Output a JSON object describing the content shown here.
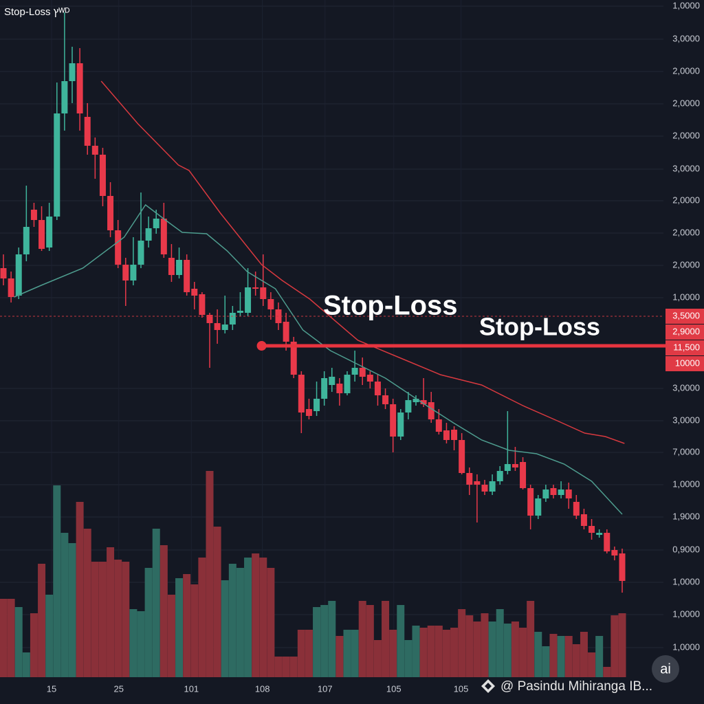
{
  "chart_data": {
    "type": "candlestick",
    "title": "Stop-Loss ץᵂᴰ",
    "up_color": "#3fb59c",
    "down_color": "#e8394a",
    "volume_up_color": "#2e6b62",
    "volume_down_color": "#8a3039",
    "grid": true,
    "xlim": [
      -0.45,
      86.4
    ],
    "ylim": [
      0,
      100
    ],
    "y2lim": [
      0,
      100
    ],
    "xticks": [
      {
        "value": 6.3,
        "label": "15"
      },
      {
        "value": 15.1,
        "label": "25"
      },
      {
        "value": 24.6,
        "label": "101"
      },
      {
        "value": 33.9,
        "label": "108"
      },
      {
        "value": 42.1,
        "label": "107"
      },
      {
        "value": 51.1,
        "label": "105"
      },
      {
        "value": 59.9,
        "label": "105"
      }
    ],
    "yticks": [
      {
        "value": 99.1,
        "label": "1,0000"
      },
      {
        "value": 94.3,
        "label": "3,0000"
      },
      {
        "value": 89.6,
        "label": "2,0000"
      },
      {
        "value": 84.9,
        "label": "2,0000"
      },
      {
        "value": 80.2,
        "label": "2,0000"
      },
      {
        "value": 75.4,
        "label": "3,0000"
      },
      {
        "value": 70.8,
        "label": "2,0000"
      },
      {
        "value": 66.1,
        "label": "2,0000"
      },
      {
        "value": 61.4,
        "label": "2,0000"
      },
      {
        "value": 56.7,
        "label": "1,0000"
      },
      {
        "value": 43.5,
        "label": "3,0000"
      },
      {
        "value": 38.8,
        "label": "3,0000"
      },
      {
        "value": 34.2,
        "label": "7,0000"
      },
      {
        "value": 29.5,
        "label": "1,0000"
      },
      {
        "value": 24.8,
        "label": "1,9000"
      },
      {
        "value": 20,
        "label": "0,9000"
      },
      {
        "value": 15.3,
        "label": "1,0000"
      },
      {
        "value": 10.6,
        "label": "1,0000"
      },
      {
        "value": 5.8,
        "label": "1,0000"
      }
    ],
    "price_markers": [
      {
        "value": 54,
        "label": "3,5000"
      },
      {
        "value": 51.7,
        "label": "2,9000"
      },
      {
        "value": 49.4,
        "label": "11,500"
      },
      {
        "value": 47.1,
        "label": "10000"
      }
    ],
    "dashed_level": 54,
    "stop_loss": {
      "value": 49.7,
      "start_x": 33.8
    },
    "annotations": [
      "Stop-Loss",
      "Stop-Loss"
    ],
    "open": [
      61,
      59.5,
      57,
      63,
      69.5,
      68,
      64,
      68.5,
      83.5,
      88.2,
      90.8,
      83,
      78.8,
      77.5,
      71.5,
      66.5,
      61.5,
      59.2,
      61.5,
      65,
      66.8,
      68.2,
      62.5,
      60,
      62.2,
      58,
      57.2,
      54.2,
      53,
      52,
      52.8,
      54.5,
      54.5,
      58.2,
      58.2,
      56.5,
      55,
      53.2,
      50.3,
      45.5,
      40.5,
      40.2,
      42,
      44,
      44.2,
      42.8,
      45.5,
      46.5,
      45.5,
      44.5,
      42.5,
      41.2,
      36.5,
      40,
      41.5,
      41.8,
      41.5,
      39,
      37.4,
      37.5,
      36,
      31.2,
      30,
      29.5,
      28.5,
      30,
      31.5,
      32.5,
      32.8,
      29,
      25,
      27.5,
      29,
      28,
      28.8,
      27,
      25.2,
      23.5,
      22.2,
      22.5,
      20,
      19.5
    ],
    "high": [
      63,
      60.5,
      64,
      73,
      70.5,
      70,
      70.5,
      88,
      98.2,
      93.2,
      93,
      85,
      80,
      78.5,
      73.5,
      68,
      62.5,
      65.5,
      72,
      68.5,
      69.5,
      70.5,
      64.5,
      64,
      63,
      59,
      57.5,
      54.5,
      55,
      57,
      55.5,
      57.5,
      61,
      60.5,
      63,
      57.5,
      56,
      54.5,
      51,
      46,
      42,
      44.5,
      46,
      46.5,
      45,
      46,
      49,
      48,
      46,
      45.5,
      43.5,
      42,
      40.5,
      43,
      42.5,
      45,
      43,
      40.5,
      38.5,
      38,
      37,
      32,
      31,
      30.2,
      31,
      32.2,
      40.2,
      35,
      33.5,
      29.5,
      28,
      29.5,
      29.5,
      30,
      29.8,
      28,
      26,
      24.5,
      23,
      23,
      20.5,
      20.2
    ],
    "low": [
      58.5,
      56,
      56.5,
      62,
      67,
      63.5,
      63.5,
      68,
      81,
      85,
      81,
      77.5,
      74,
      70,
      65.5,
      61,
      55.5,
      58.5,
      61,
      64,
      66,
      62.5,
      59,
      59.5,
      57,
      55,
      53.8,
      46.5,
      50,
      51.5,
      52,
      54,
      54,
      57,
      55.5,
      53.5,
      52,
      49,
      45,
      37,
      39,
      39.5,
      41,
      43,
      41,
      42.5,
      44.5,
      44,
      43.5,
      41,
      40.5,
      34.2,
      36,
      39,
      41,
      40.8,
      38.5,
      36.8,
      35.5,
      34.5,
      31,
      28,
      24,
      28,
      28,
      29.5,
      31,
      31.5,
      28.8,
      23,
      24.5,
      27,
      27.5,
      27.5,
      26,
      24.5,
      23,
      21.5,
      21.8,
      19.5,
      18.5,
      13.8
    ],
    "close": [
      59.5,
      56.8,
      63,
      67,
      68,
      63.8,
      68.5,
      83.5,
      88.2,
      90.8,
      83.5,
      78.8,
      77.5,
      71.5,
      66.5,
      61.5,
      59.2,
      61.5,
      65,
      66.8,
      68.2,
      63,
      60,
      62.2,
      57.5,
      57,
      54.2,
      53,
      52,
      52.8,
      54.5,
      54.8,
      58.2,
      58,
      56.5,
      55,
      53,
      50.3,
      45.5,
      40,
      39.5,
      42,
      45,
      45.2,
      42.8,
      45.5,
      46.5,
      45.2,
      44.5,
      42.5,
      41.2,
      36.5,
      40,
      41.8,
      42,
      41.2,
      39,
      37.2,
      36,
      36,
      31.2,
      29.5,
      29.5,
      28.5,
      30,
      31.5,
      32.5,
      32,
      29,
      25,
      27.5,
      28.8,
      28,
      28.8,
      27.5,
      25,
      23.5,
      22.5,
      22.5,
      19.8,
      19.2,
      15.5
    ],
    "volume": [
      38,
      38,
      34,
      12,
      31,
      55,
      40,
      93,
      70,
      65,
      85,
      72,
      56,
      56,
      63,
      57,
      56,
      33,
      32,
      53,
      72,
      64,
      40,
      48,
      50,
      45,
      58,
      100,
      73,
      47,
      55,
      53,
      58,
      60,
      58,
      53,
      10,
      10,
      10,
      23,
      23,
      34,
      35,
      37,
      20,
      23,
      23,
      37,
      35,
      18,
      37,
      23,
      35,
      18,
      25,
      24,
      25,
      25,
      23,
      24,
      33,
      30,
      27,
      31,
      27,
      33,
      26,
      27,
      24,
      37,
      22,
      15,
      21,
      20,
      20,
      16,
      22,
      12,
      20,
      5,
      30,
      31
    ],
    "lines": [
      {
        "color": "#d8393f",
        "x": [
          12.8,
          17.6,
          22.9,
          24.3,
          28.4,
          33.8,
          36.5,
          40.1,
          46.4,
          51.8,
          57.2,
          62.6,
          68.0,
          72.5,
          76.1,
          78.8,
          81.3
        ],
        "values": [
          88.2,
          82,
          76,
          75.2,
          69,
          61.5,
          59.2,
          56.5,
          50.5,
          48,
          45.5,
          44,
          41,
          38.8,
          37,
          36.5,
          35.5
        ]
      },
      {
        "color": "#4e9d8f",
        "x": [
          1.4,
          4.95,
          10.4,
          15.8,
          18.6,
          21.2,
          23.4,
          26.6,
          29.3,
          31.9,
          35.6,
          39.2,
          42.8,
          46.4,
          50,
          55.4,
          58.9,
          62.6,
          66.2,
          69.8,
          73.4,
          77,
          81
        ],
        "values": [
          56.8,
          58.5,
          61,
          65.5,
          70.2,
          68,
          66.2,
          66,
          63.5,
          60.5,
          58,
          52,
          49,
          47,
          45,
          41,
          38.5,
          36,
          34.5,
          34,
          32.5,
          30,
          25.2
        ]
      }
    ],
    "watermark": "@ Pasindu Mihiranga IB...",
    "badge": "ai"
  }
}
